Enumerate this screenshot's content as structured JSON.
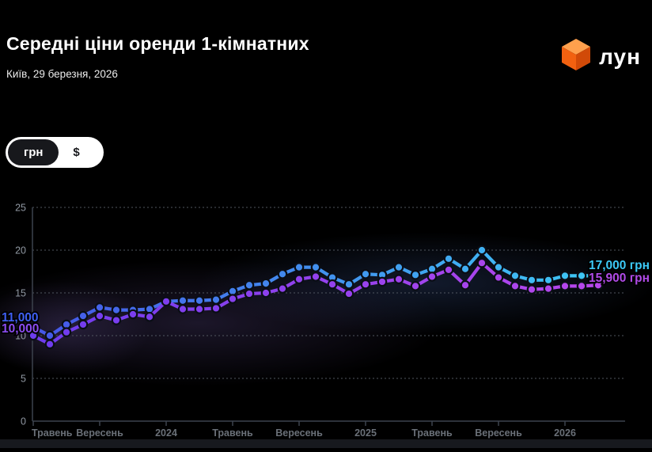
{
  "header": {
    "title": "Середні ціни оренди 1-кімнатних",
    "subtitle": "Київ, 29 березня, 2026",
    "logo_text": "лун",
    "logo_colors": {
      "top": "#ffa04d",
      "left": "#f26110",
      "right": "#d14a08"
    }
  },
  "toggle": {
    "options": [
      "грн",
      "$"
    ],
    "selected": "грн"
  },
  "chart_data": {
    "type": "line",
    "title": "Середні ціни оренди 1-кімнатних, грн",
    "x_unit": "month",
    "n_points": 35,
    "x_tick_labels": [
      "Травень",
      "Вересень",
      "2024",
      "Травень",
      "Вересень",
      "2025",
      "Травень",
      "Вересень",
      "2026"
    ],
    "x_tick_indices": [
      0,
      4,
      8,
      12,
      16,
      20,
      24,
      28,
      32
    ],
    "y_tick_labels": [
      "0",
      "5",
      "10",
      "15",
      "20",
      "25"
    ],
    "y_ticks": [
      0,
      5,
      10,
      15,
      20,
      25
    ],
    "ylim": [
      0,
      25
    ],
    "grid": "horizontal-dashed",
    "legend": "none",
    "series": [
      {
        "id": "upper-line-blue",
        "start_label": "11,000",
        "end_label": "17,000 грн",
        "color_start": "#4656e8",
        "color_end": "#3ec9f5",
        "start_label_color": "#3f5ff2",
        "end_label_color": "#3cc9f7",
        "values": [
          11.0,
          10.0,
          11.3,
          12.3,
          13.3,
          13.0,
          13.0,
          13.1,
          14.0,
          14.1,
          14.1,
          14.2,
          15.2,
          15.9,
          16.1,
          17.2,
          18.0,
          18.0,
          16.8,
          16.0,
          17.2,
          17.1,
          18.0,
          17.1,
          17.8,
          19.0,
          17.8,
          20.0,
          18.0,
          17.0,
          16.5,
          16.5,
          17.0,
          17.0,
          17.0
        ]
      },
      {
        "id": "lower-line-purple",
        "start_label": "10,000",
        "end_label": "15,900 грн",
        "color_start": "#6e3cee",
        "color_end": "#b847ec",
        "start_label_color": "#8b4cf0",
        "end_label_color": "#b14be8",
        "values": [
          10.0,
          9.0,
          10.4,
          11.3,
          12.3,
          11.8,
          12.5,
          12.2,
          14.0,
          13.1,
          13.1,
          13.2,
          14.3,
          14.9,
          15.0,
          15.5,
          16.6,
          16.9,
          16.0,
          14.9,
          16.0,
          16.3,
          16.6,
          15.8,
          16.9,
          17.7,
          15.9,
          18.5,
          16.8,
          15.8,
          15.4,
          15.5,
          15.8,
          15.8,
          15.9
        ]
      }
    ]
  }
}
